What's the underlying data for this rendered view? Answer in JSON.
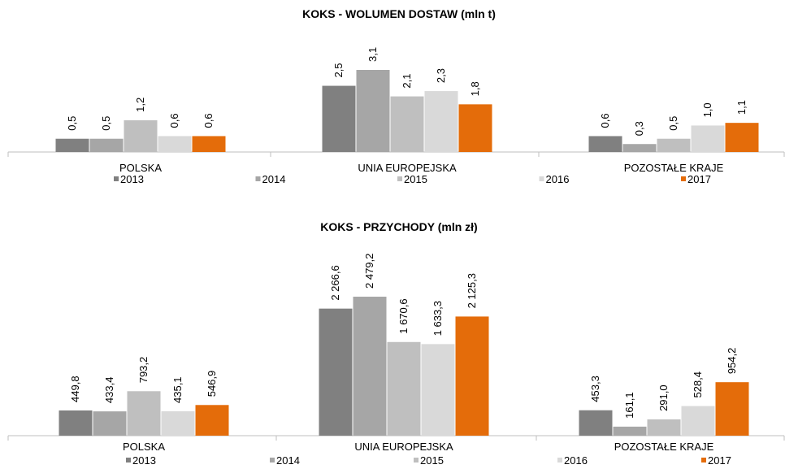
{
  "chart_data": [
    {
      "type": "bar",
      "title": "KOKS - WOLUMEN DOSTAW (mln t)",
      "categories": [
        "POLSKA",
        "UNIA EUROPEJSKA",
        "POZOSTAŁE KRAJE"
      ],
      "series": [
        {
          "name": "2013",
          "color": "#808080",
          "values": [
            0.5,
            2.5,
            0.6
          ],
          "value_labels": [
            "0,5",
            "2,5",
            "0,6"
          ]
        },
        {
          "name": "2014",
          "color": "#a6a6a6",
          "values": [
            0.5,
            3.1,
            0.3
          ],
          "value_labels": [
            "0,5",
            "3,1",
            "0,3"
          ]
        },
        {
          "name": "2015",
          "color": "#bfbfbf",
          "values": [
            1.2,
            2.1,
            0.5
          ],
          "value_labels": [
            "1,2",
            "2,1",
            "0,5"
          ]
        },
        {
          "name": "2016",
          "color": "#d9d9d9",
          "values": [
            0.6,
            2.3,
            1.0
          ],
          "value_labels": [
            "0,6",
            "2,3",
            "1,0"
          ]
        },
        {
          "name": "2017",
          "color": "#e46c0a",
          "values": [
            0.6,
            1.8,
            1.1
          ],
          "value_labels": [
            "0,6",
            "1,8",
            "1,1"
          ]
        }
      ]
    },
    {
      "type": "bar",
      "title": "KOKS - PRZYCHODY (mln zł)",
      "categories": [
        "POLSKA",
        "UNIA EUROPEJSKA",
        "POZOSTAŁE KRAJE"
      ],
      "series": [
        {
          "name": "2013",
          "color": "#808080",
          "values": [
            449.8,
            2266.6,
            453.3
          ],
          "value_labels": [
            "449,8",
            "2 266,6",
            "453,3"
          ]
        },
        {
          "name": "2014",
          "color": "#a6a6a6",
          "values": [
            433.4,
            2479.2,
            161.1
          ],
          "value_labels": [
            "433,4",
            "2 479,2",
            "161,1"
          ]
        },
        {
          "name": "2015",
          "color": "#bfbfbf",
          "values": [
            793.2,
            1670.6,
            291.0
          ],
          "value_labels": [
            "793,2",
            "1 670,6",
            "291,0"
          ]
        },
        {
          "name": "2016",
          "color": "#d9d9d9",
          "values": [
            435.1,
            1633.3,
            528.4
          ],
          "value_labels": [
            "435,1",
            "1 633,3",
            "528,4"
          ]
        },
        {
          "name": "2017",
          "color": "#e46c0a",
          "values": [
            546.9,
            2125.3,
            954.2
          ],
          "value_labels": [
            "546,9",
            "2 125,3",
            "954,2"
          ]
        }
      ]
    }
  ]
}
